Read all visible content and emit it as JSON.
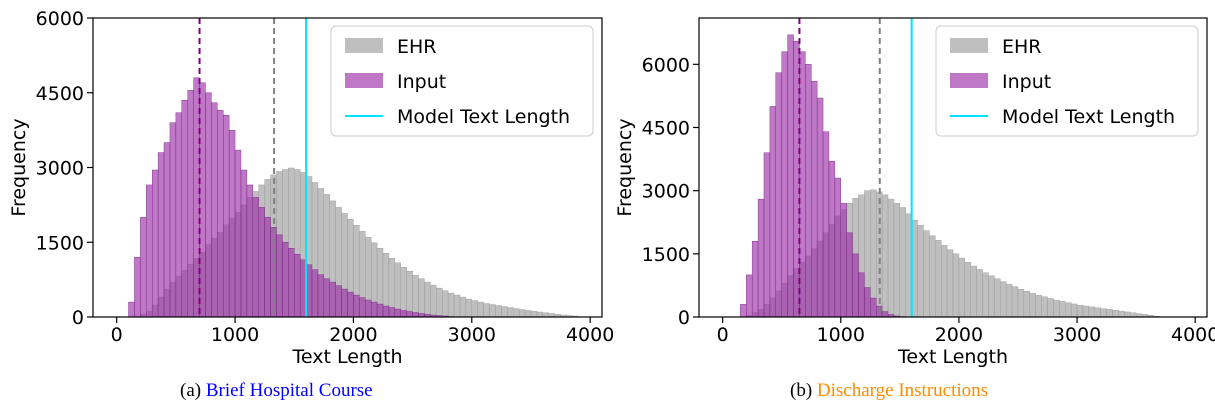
{
  "chart_data": [
    {
      "type": "histogram",
      "xlabel": "Text Length",
      "ylabel": "Frequency",
      "xlim": [
        -200,
        4100
      ],
      "ylim": [
        0,
        6000
      ],
      "xticks": [
        0,
        1000,
        2000,
        3000,
        4000
      ],
      "yticks": [
        0,
        1500,
        3000,
        4500,
        6000
      ],
      "legend": {
        "position": "top-right",
        "entries": [
          "EHR",
          "Input",
          "Model Text Length"
        ]
      },
      "bin_width": 50,
      "series": [
        {
          "name": "EHR",
          "color": "#a9a9a9",
          "bins_start": 200,
          "values": [
            50,
            120,
            240,
            400,
            560,
            700,
            820,
            940,
            1060,
            1180,
            1300,
            1450,
            1580,
            1700,
            1850,
            1980,
            2100,
            2250,
            2400,
            2520,
            2650,
            2760,
            2850,
            2920,
            2960,
            2990,
            2960,
            2900,
            2820,
            2700,
            2580,
            2460,
            2330,
            2200,
            2080,
            1960,
            1840,
            1720,
            1600,
            1490,
            1380,
            1280,
            1180,
            1090,
            1000,
            920,
            840,
            770,
            700,
            640,
            580,
            530,
            480,
            440,
            400,
            360,
            330,
            300,
            270,
            250,
            230,
            210,
            190,
            170,
            150,
            130,
            115,
            100,
            85,
            70,
            55,
            40,
            30,
            20
          ]
        },
        {
          "name": "Input",
          "color": "#9b30a8",
          "bins_start": 100,
          "values": [
            300,
            1200,
            2000,
            2650,
            2950,
            3300,
            3500,
            3900,
            4100,
            4350,
            4550,
            4800,
            4700,
            4500,
            4300,
            4150,
            4050,
            3750,
            3350,
            2950,
            2650,
            2400,
            2200,
            2000,
            1800,
            1650,
            1500,
            1380,
            1260,
            1150,
            1050,
            950,
            850,
            770,
            700,
            630,
            560,
            500,
            440,
            390,
            340,
            300,
            260,
            220,
            190,
            160,
            130,
            110,
            90,
            70,
            55,
            40,
            30,
            20,
            10
          ]
        }
      ],
      "vlines": [
        {
          "x": 700,
          "style": "dashed",
          "color": "#800080"
        },
        {
          "x": 1330,
          "style": "dashed",
          "color": "#808080"
        },
        {
          "x": 1600,
          "style": "solid",
          "color": "#00e5ff"
        }
      ],
      "caption_prefix": "(a) ",
      "caption_title": "Brief Hospital Course",
      "caption_color": "#0000ff"
    },
    {
      "type": "histogram",
      "xlabel": "Text Length",
      "ylabel": "Frequency",
      "xlim": [
        -200,
        4100
      ],
      "ylim": [
        0,
        7100
      ],
      "xticks": [
        0,
        1000,
        2000,
        3000,
        4000
      ],
      "yticks": [
        0,
        1500,
        3000,
        4500,
        6000
      ],
      "legend": {
        "position": "top-right",
        "entries": [
          "EHR",
          "Input",
          "Model Text Length"
        ]
      },
      "bin_width": 50,
      "series": [
        {
          "name": "EHR",
          "color": "#a9a9a9",
          "bins_start": 200,
          "values": [
            40,
            100,
            180,
            300,
            450,
            620,
            800,
            980,
            1150,
            1300,
            1450,
            1620,
            1800,
            2000,
            2200,
            2400,
            2550,
            2700,
            2820,
            2900,
            3000,
            3020,
            2970,
            2900,
            2800,
            2700,
            2600,
            2450,
            2300,
            2180,
            2050,
            1930,
            1820,
            1700,
            1600,
            1500,
            1400,
            1300,
            1210,
            1130,
            1050,
            980,
            910,
            840,
            780,
            720,
            660,
            610,
            560,
            520,
            480,
            440,
            400,
            370,
            340,
            310,
            280,
            260,
            240,
            220,
            200,
            180,
            160,
            140,
            120,
            100,
            80,
            60,
            40,
            20
          ]
        },
        {
          "name": "Input",
          "color": "#9b30a8",
          "bins_start": 150,
          "values": [
            300,
            1000,
            1800,
            2800,
            3900,
            5000,
            5800,
            6300,
            6700,
            6550,
            6300,
            6000,
            5600,
            5200,
            4400,
            3700,
            3300,
            2700,
            2000,
            1500,
            1050,
            700,
            450,
            260,
            130,
            60,
            25,
            10
          ]
        }
      ],
      "vlines": [
        {
          "x": 650,
          "style": "dashed",
          "color": "#800080"
        },
        {
          "x": 1330,
          "style": "dashed",
          "color": "#808080"
        },
        {
          "x": 1600,
          "style": "solid",
          "color": "#00e5ff"
        }
      ],
      "caption_prefix": "(b) ",
      "caption_title": "Discharge Instructions",
      "caption_color": "#ff8c00"
    }
  ]
}
